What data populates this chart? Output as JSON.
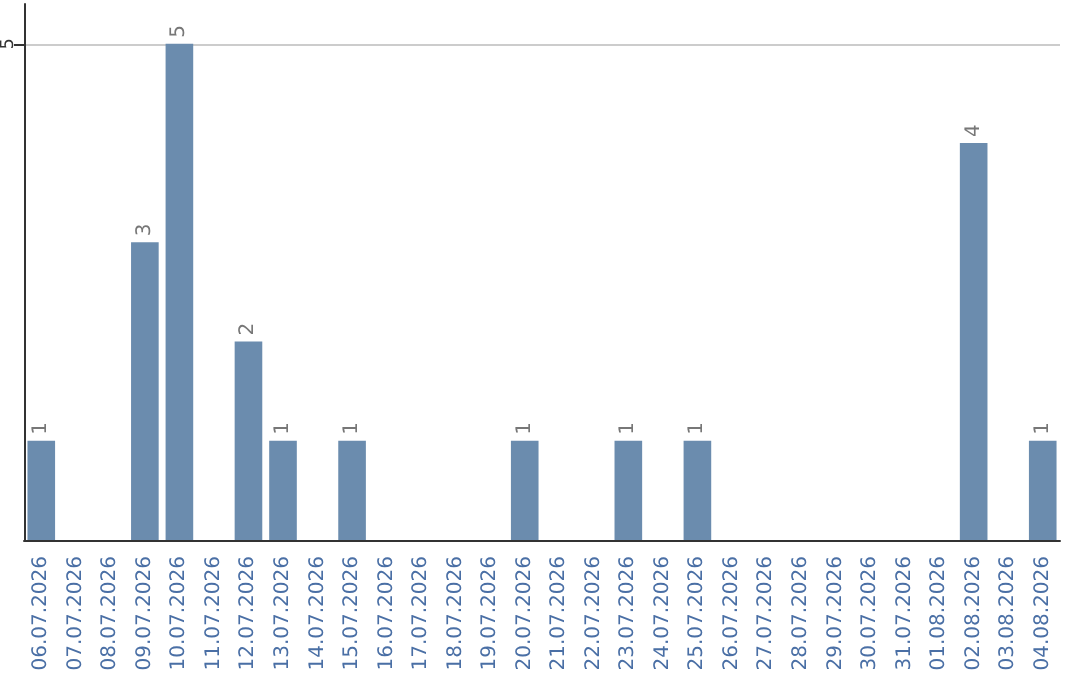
{
  "chart_data": {
    "type": "bar",
    "categories": [
      "06.07.2026",
      "07.07.2026",
      "08.07.2026",
      "09.07.2026",
      "10.07.2026",
      "11.07.2026",
      "12.07.2026",
      "13.07.2026",
      "14.07.2026",
      "15.07.2026",
      "16.07.2026",
      "17.07.2026",
      "18.07.2026",
      "19.07.2026",
      "20.07.2026",
      "21.07.2026",
      "22.07.2026",
      "23.07.2026",
      "24.07.2026",
      "25.07.2026",
      "26.07.2026",
      "27.07.2026",
      "28.07.2026",
      "29.07.2026",
      "30.07.2026",
      "31.07.2026",
      "01.08.2026",
      "02.08.2026",
      "03.08.2026",
      "04.08.2026"
    ],
    "values": [
      1,
      0,
      0,
      3,
      5,
      0,
      2,
      1,
      0,
      1,
      0,
      0,
      0,
      0,
      1,
      0,
      0,
      1,
      0,
      1,
      0,
      0,
      0,
      0,
      0,
      0,
      0,
      4,
      0,
      1
    ],
    "value_labels": [
      "1",
      null,
      null,
      "3",
      "5",
      null,
      "2",
      "1",
      null,
      "1",
      null,
      null,
      null,
      null,
      "1",
      null,
      null,
      "1",
      null,
      "1",
      null,
      null,
      null,
      null,
      null,
      null,
      null,
      "4",
      null,
      "1"
    ],
    "color": "#6b8cae",
    "ylim": [
      0,
      5.4
    ],
    "yticks": [
      5
    ],
    "grid": "y"
  }
}
